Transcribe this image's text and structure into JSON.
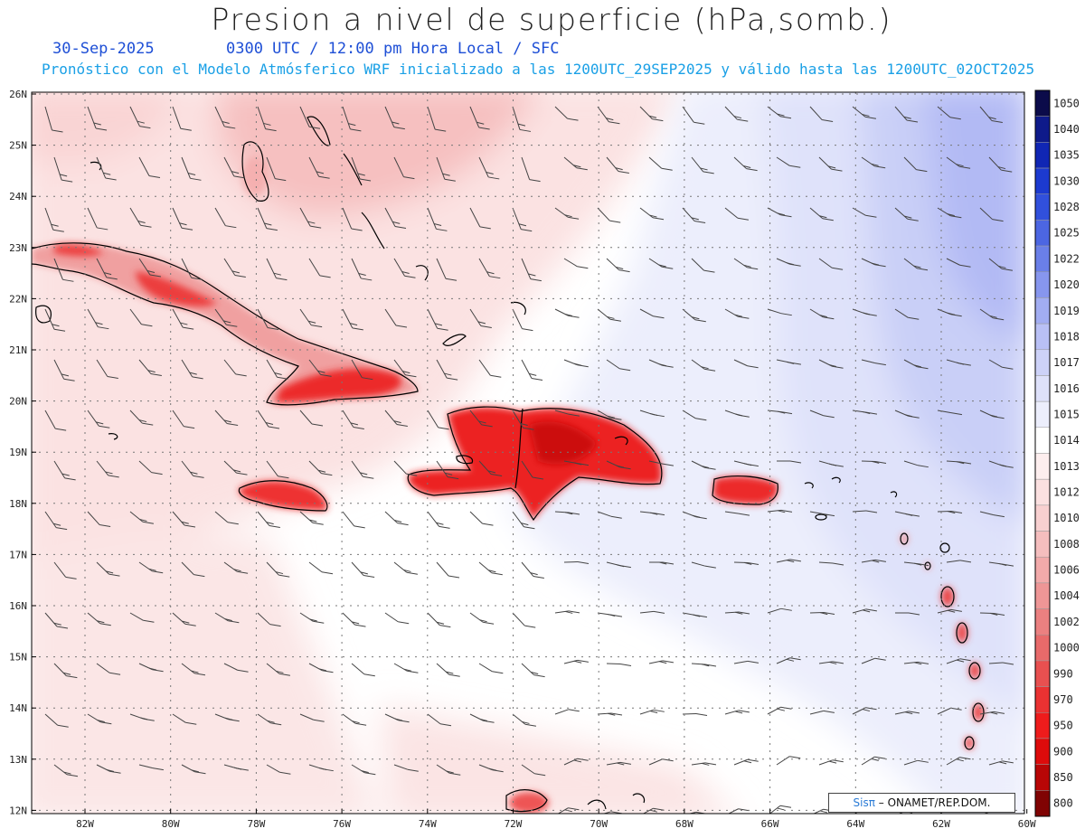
{
  "title": "Presion a nivel de superficie (hPa,somb.)",
  "date": "30-Sep-2025",
  "time_info": "0300 UTC / 12:00 pm Hora Local / SFC",
  "forecast_info": "Pronóstico con el Modelo Atmósferico WRF inicializado a las 1200UTC_29SEP2025 y válido hasta las  1200UTC_02OCT2025",
  "credit_logo": "Sisπ",
  "credit_text": "– ONAMET/REP.DOM.",
  "lat_labels": [
    "26N",
    "25N",
    "24N",
    "23N",
    "22N",
    "21N",
    "20N",
    "19N",
    "18N",
    "17N",
    "16N",
    "15N",
    "14N",
    "13N",
    "12N"
  ],
  "lon_labels": [
    "82W",
    "80W",
    "78W",
    "76W",
    "74W",
    "72W",
    "70W",
    "68W",
    "66W",
    "64W",
    "62W",
    "60W"
  ],
  "colorbar": [
    {
      "label": "1050",
      "color": "#0b0b4a"
    },
    {
      "label": "1040",
      "color": "#0e1a8a"
    },
    {
      "label": "1035",
      "color": "#1026b4"
    },
    {
      "label": "1030",
      "color": "#1c3ad0"
    },
    {
      "label": "1028",
      "color": "#3150dc"
    },
    {
      "label": "1025",
      "color": "#4c66e2"
    },
    {
      "label": "1022",
      "color": "#6a7fe8"
    },
    {
      "label": "1020",
      "color": "#8796ee"
    },
    {
      "label": "1019",
      "color": "#a2adf2"
    },
    {
      "label": "1018",
      "color": "#b9c0f5"
    },
    {
      "label": "1017",
      "color": "#cdd2f8"
    },
    {
      "label": "1016",
      "color": "#dee1fa"
    },
    {
      "label": "1015",
      "color": "#eceefc"
    },
    {
      "label": "1014",
      "color": "#ffffff"
    },
    {
      "label": "1013",
      "color": "#fdeeee"
    },
    {
      "label": "1012",
      "color": "#fbe0e0"
    },
    {
      "label": "1010",
      "color": "#f8d0d0"
    },
    {
      "label": "1008",
      "color": "#f5bebe"
    },
    {
      "label": "1006",
      "color": "#f2aaaa"
    },
    {
      "label": "1004",
      "color": "#ee9696"
    },
    {
      "label": "1002",
      "color": "#eb8080"
    },
    {
      "label": "1000",
      "color": "#e86a6a"
    },
    {
      "label": "990",
      "color": "#e85050"
    },
    {
      "label": "970",
      "color": "#ea3232"
    },
    {
      "label": "950",
      "color": "#ee1c1c"
    },
    {
      "label": "900",
      "color": "#dd0b0b"
    },
    {
      "label": "850",
      "color": "#b80606"
    },
    {
      "label": "800",
      "color": "#800303"
    }
  ]
}
